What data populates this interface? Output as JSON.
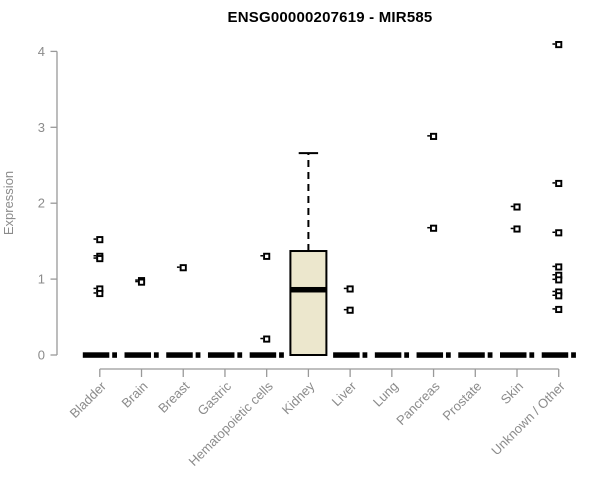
{
  "chart_data": {
    "type": "boxplot",
    "title": "ENSG00000207619 - MIR585",
    "ylabel": "Expression",
    "xlabel": "",
    "ylim": [
      0,
      4.2
    ],
    "y_ticks": [
      0,
      1,
      2,
      3,
      4
    ],
    "grid": false,
    "legend": null,
    "categories": [
      "Bladder",
      "Brain",
      "Breast",
      "Gastric",
      "Hematopoietic cells",
      "Kidney",
      "Liver",
      "Lung",
      "Pancreas",
      "Prostate",
      "Skin",
      "Unknown / Other"
    ],
    "series": [
      {
        "category": "Bladder",
        "collapsed_box_at_zero": true,
        "points": [
          1.52,
          1.3,
          1.27,
          0.87,
          0.81
        ]
      },
      {
        "category": "Brain",
        "collapsed_box_at_zero": true,
        "points": [
          0.98,
          0.96
        ]
      },
      {
        "category": "Breast",
        "collapsed_box_at_zero": true,
        "points": [
          1.15
        ]
      },
      {
        "category": "Gastric",
        "collapsed_box_at_zero": true,
        "points": []
      },
      {
        "category": "Hematopoietic cells",
        "collapsed_box_at_zero": true,
        "points": [
          1.3,
          0.21
        ]
      },
      {
        "category": "Kidney",
        "collapsed_box_at_zero": false,
        "points": [],
        "box": {
          "lower_whisker": 0,
          "q1": 0,
          "median": 0.86,
          "q3": 1.37,
          "upper_whisker": 2.66
        }
      },
      {
        "category": "Liver",
        "collapsed_box_at_zero": true,
        "points": [
          0.87,
          0.59
        ]
      },
      {
        "category": "Lung",
        "collapsed_box_at_zero": true,
        "points": []
      },
      {
        "category": "Pancreas",
        "collapsed_box_at_zero": true,
        "points": [
          2.88,
          1.67
        ]
      },
      {
        "category": "Prostate",
        "collapsed_box_at_zero": true,
        "points": []
      },
      {
        "category": "Skin",
        "collapsed_box_at_zero": true,
        "points": [
          1.95,
          1.66
        ]
      },
      {
        "category": "Unknown / Other",
        "collapsed_box_at_zero": true,
        "points": [
          4.09,
          2.26,
          1.61,
          1.16,
          1.05,
          0.99,
          0.83,
          0.78,
          0.6
        ]
      }
    ],
    "colors": {
      "box_fill": "#ECE7CD",
      "box_stroke": "#000000",
      "point_color": "#000000",
      "zero_bar_color": "#000000",
      "axis_line": "#999999",
      "axis_text": "#8B8B8B",
      "title_color": "#000000",
      "background": "#FFFFFF"
    }
  }
}
